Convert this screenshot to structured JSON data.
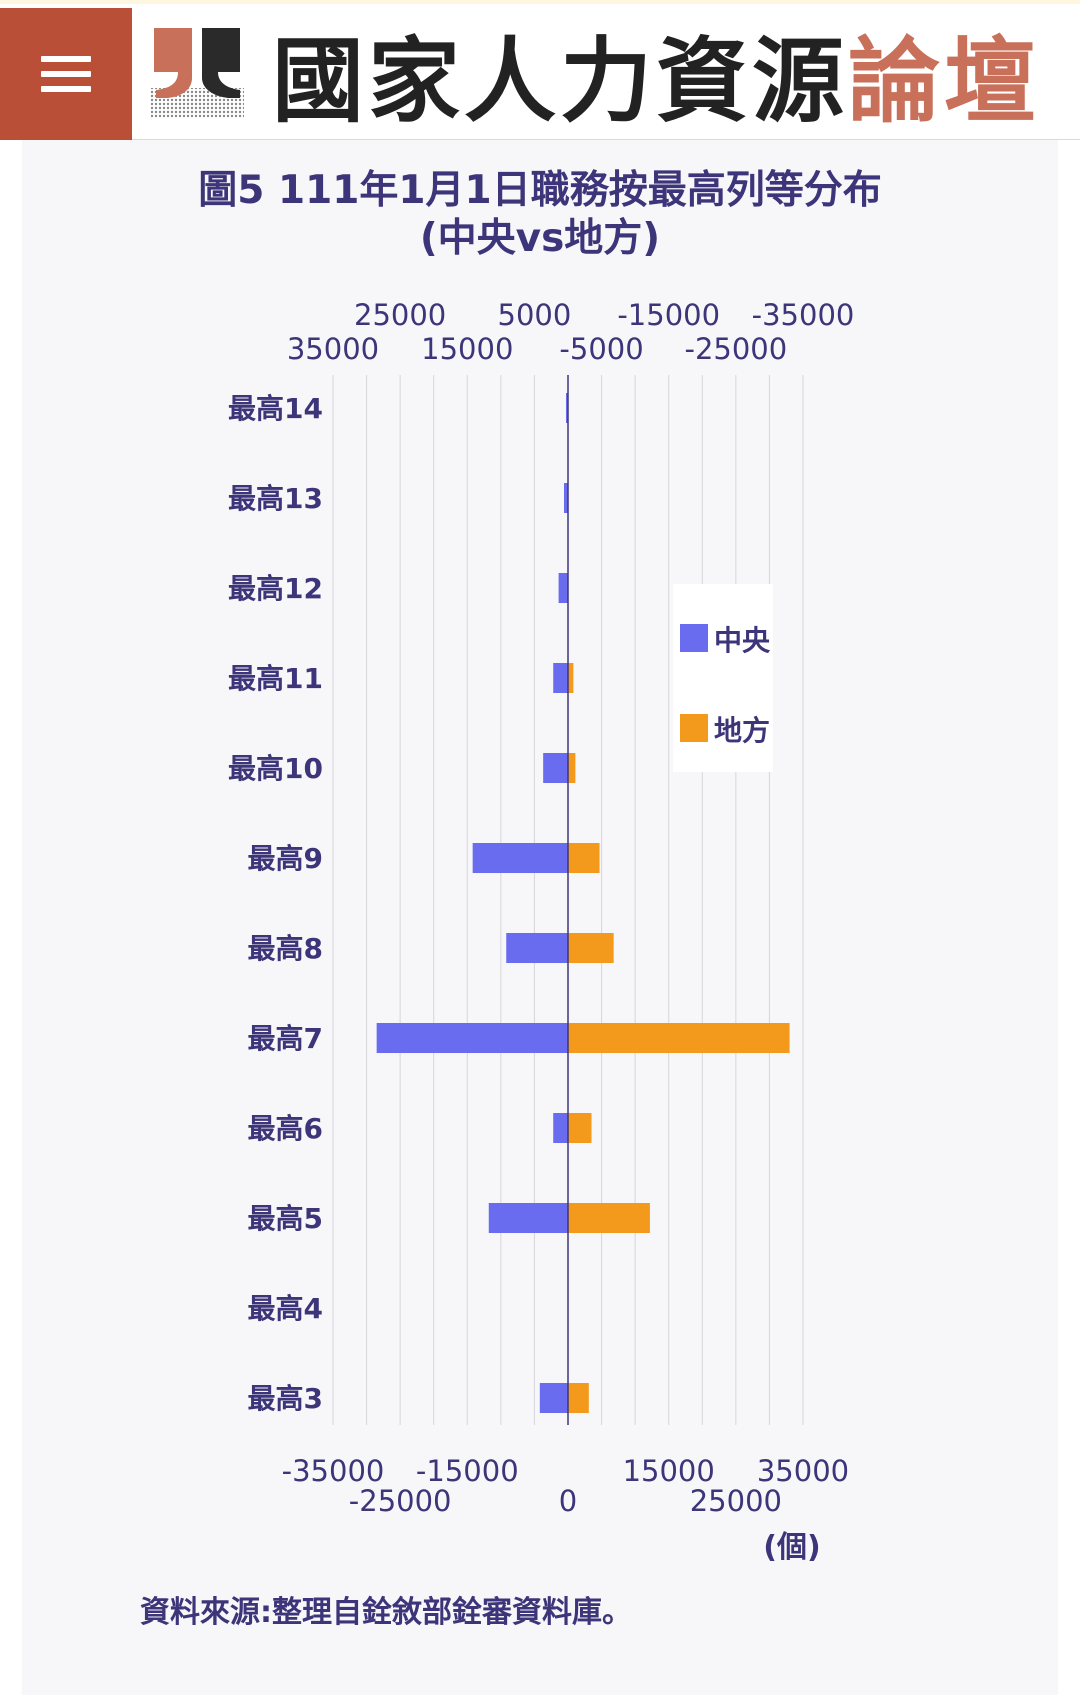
{
  "header": {
    "menu_icon": "hamburger-menu-icon",
    "logo_icon": "forum-logo-icon",
    "brand_main": "國家人力資源",
    "brand_accent": "論壇",
    "colors": {
      "menu_bg": "#b94f36",
      "brand_accent": "#c8705a",
      "brand_dark": "#222222"
    }
  },
  "chart_data": {
    "type": "bar",
    "orientation": "horizontal-diverging",
    "title_line1": "圖5 111年1月1日職務按最高列等分布",
    "title_line2": "(中央vs地方)",
    "categories": [
      "最高14",
      "最高13",
      "最高12",
      "最高11",
      "最高10",
      "最高9",
      "最高8",
      "最高7",
      "最高6",
      "最高5",
      "最高4",
      "最高3"
    ],
    "series": [
      {
        "name": "中央",
        "color": "#6a6cf0",
        "values": [
          -300,
          -600,
          -1400,
          -2200,
          -3700,
          -14200,
          -9200,
          -28500,
          -2200,
          -11800,
          0,
          -4200
        ]
      },
      {
        "name": "地方",
        "color": "#f39a1c",
        "values": [
          0,
          0,
          0,
          800,
          1100,
          4700,
          6800,
          33000,
          3500,
          12200,
          0,
          3100
        ]
      }
    ],
    "xlim": [
      -35000,
      35000
    ],
    "x_gridlines": [
      -35000,
      -30000,
      -25000,
      -20000,
      -15000,
      -10000,
      -5000,
      0,
      5000,
      10000,
      15000,
      20000,
      25000,
      30000,
      35000
    ],
    "bottom_axis": {
      "row1": [
        "-35000",
        "-15000",
        "15000",
        "35000"
      ],
      "row2": [
        "-25000",
        "0",
        "25000"
      ]
    },
    "top_axis": {
      "row1": [
        "25000",
        "5000",
        "-15000",
        "-35000"
      ],
      "row2": [
        "35000",
        "15000",
        "-5000",
        "-25000"
      ]
    },
    "unit_label": "(個)",
    "legend": [
      {
        "label": "中央",
        "color": "#6a6cf0"
      },
      {
        "label": "地方",
        "color": "#f39a1c"
      }
    ],
    "legend_position": "right"
  },
  "source": "資料來源:整理自銓敘部銓審資料庫。"
}
